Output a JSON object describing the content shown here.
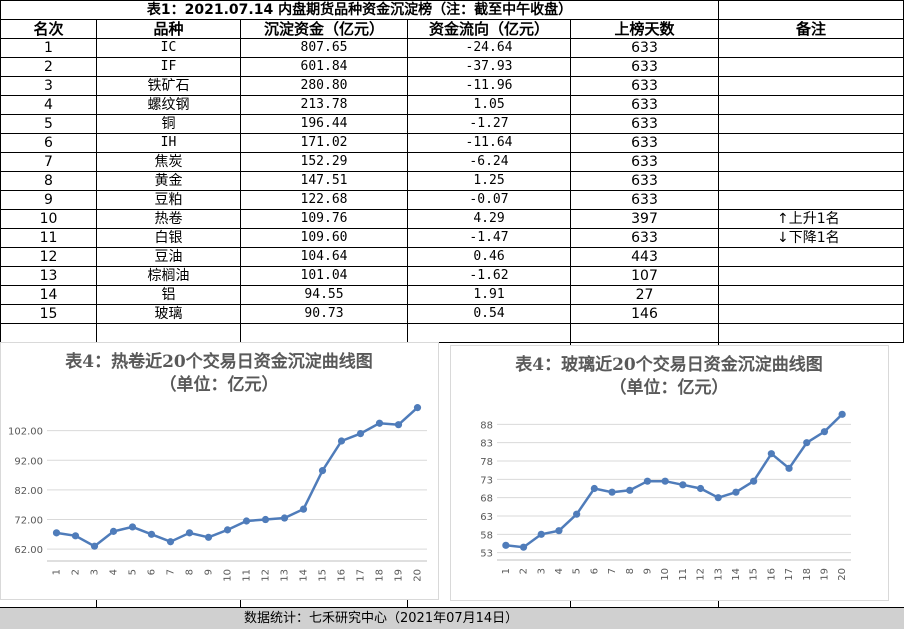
{
  "table": {
    "title": "表1：2021.07.14 内盘期货品种资金沉淀榜（注：截至中午收盘）",
    "headers": [
      "名次",
      "品种",
      "沉淀资金（亿元）",
      "资金流向（亿元）",
      "上榜天数",
      "备注"
    ],
    "rows": [
      {
        "rank": "1",
        "name": "IC",
        "capital": "807.65",
        "flow": "-24.64",
        "days": "633",
        "note": ""
      },
      {
        "rank": "2",
        "name": "IF",
        "capital": "601.84",
        "flow": "-37.93",
        "days": "633",
        "note": ""
      },
      {
        "rank": "3",
        "name": "铁矿石",
        "capital": "280.80",
        "flow": "-11.96",
        "days": "633",
        "note": ""
      },
      {
        "rank": "4",
        "name": "螺纹钢",
        "capital": "213.78",
        "flow": "1.05",
        "days": "633",
        "note": ""
      },
      {
        "rank": "5",
        "name": "铜",
        "capital": "196.44",
        "flow": "-1.27",
        "days": "633",
        "note": ""
      },
      {
        "rank": "6",
        "name": "IH",
        "capital": "171.02",
        "flow": "-11.64",
        "days": "633",
        "note": ""
      },
      {
        "rank": "7",
        "name": "焦炭",
        "capital": "152.29",
        "flow": "-6.24",
        "days": "633",
        "note": ""
      },
      {
        "rank": "8",
        "name": "黄金",
        "capital": "147.51",
        "flow": "1.25",
        "days": "633",
        "note": ""
      },
      {
        "rank": "9",
        "name": "豆粕",
        "capital": "122.68",
        "flow": "-0.07",
        "days": "633",
        "note": ""
      },
      {
        "rank": "10",
        "name": "热卷",
        "capital": "109.76",
        "flow": "4.29",
        "days": "397",
        "note": "↑上升1名"
      },
      {
        "rank": "11",
        "name": "白银",
        "capital": "109.60",
        "flow": "-1.47",
        "days": "633",
        "note": "↓下降1名"
      },
      {
        "rank": "12",
        "name": "豆油",
        "capital": "104.64",
        "flow": "0.46",
        "days": "443",
        "note": ""
      },
      {
        "rank": "13",
        "name": "棕榈油",
        "capital": "101.04",
        "flow": "-1.62",
        "days": "107",
        "note": ""
      },
      {
        "rank": "14",
        "name": "铝",
        "capital": "94.55",
        "flow": "1.91",
        "days": "27",
        "note": ""
      },
      {
        "rank": "15",
        "name": "玻璃",
        "capital": "90.73",
        "flow": "0.54",
        "days": "146",
        "note": ""
      }
    ]
  },
  "footer": "数据统计：七禾研究中心（2021年07月14日）",
  "colors": {
    "line": "#4f7cba",
    "grid": "#d9d9d9",
    "title": "#595959",
    "footer_bg": "#d0d0d0"
  },
  "chart_data": [
    {
      "type": "line",
      "title": "表4：热卷近20个交易日资金沉淀曲线图",
      "subtitle": "（单位：亿元）",
      "x": [
        "1",
        "2",
        "3",
        "4",
        "5",
        "6",
        "7",
        "8",
        "9",
        "10",
        "11",
        "12",
        "13",
        "14",
        "15",
        "16",
        "17",
        "18",
        "19",
        "20"
      ],
      "y_ticks": [
        "62.00",
        "72.00",
        "82.00",
        "92.00",
        "102.00"
      ],
      "ylim": [
        58,
        112
      ],
      "grid": true,
      "series": [
        {
          "values": [
            67.5,
            66.5,
            63.0,
            68.0,
            69.5,
            67.0,
            64.5,
            67.5,
            66.0,
            68.5,
            71.5,
            72.0,
            72.5,
            75.5,
            88.5,
            98.5,
            101.0,
            104.5,
            104.0,
            109.76
          ]
        }
      ]
    },
    {
      "type": "line",
      "title": "表4：玻璃近20个交易日资金沉淀曲线图",
      "subtitle": "（单位：亿元）",
      "x": [
        "1",
        "2",
        "3",
        "4",
        "5",
        "6",
        "7",
        "8",
        "9",
        "10",
        "11",
        "12",
        "13",
        "14",
        "15",
        "16",
        "17",
        "18",
        "19",
        "20"
      ],
      "y_ticks": [
        "53",
        "58",
        "63",
        "68",
        "73",
        "78",
        "83",
        "88"
      ],
      "ylim": [
        51,
        93
      ],
      "grid": true,
      "series": [
        {
          "values": [
            55.0,
            54.5,
            58.0,
            59.0,
            63.5,
            70.5,
            69.5,
            70.0,
            72.5,
            72.5,
            71.5,
            70.5,
            68.0,
            69.5,
            72.5,
            80.0,
            76.0,
            83.0,
            86.0,
            90.73
          ]
        }
      ]
    }
  ]
}
